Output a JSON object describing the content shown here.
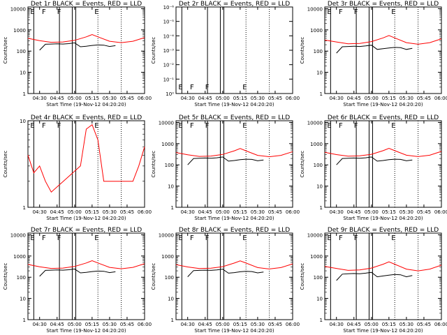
{
  "colors": {
    "events": "#000000",
    "lld": "#ff0000",
    "background": "#ffffff"
  },
  "chart_data": [
    {
      "type": "line",
      "scale": "log",
      "title": "Det 1r BLACK = Events, RED = LLD",
      "xlabel": "Start Time (19-Nov-12 04:20:20)",
      "ylabel": "Counts/sec",
      "x_ticks": [
        "04:30",
        "04:45",
        "05:00",
        "05:15",
        "05:30",
        "05:45",
        "06:00"
      ],
      "y_ticks": [
        "1",
        "10",
        "100",
        "1000",
        "10000"
      ],
      "ylim": [
        1,
        12000
      ],
      "markers": [
        "E",
        "F",
        "F",
        "E"
      ],
      "series": [
        {
          "name": "Events",
          "x": [
            "04:30",
            "04:35",
            "04:40",
            "04:45",
            "04:50",
            "04:55",
            "05:00",
            "05:05",
            "05:10",
            "05:15",
            "05:20",
            "05:25",
            "05:30",
            "05:35"
          ],
          "y": [
            110,
            210,
            215,
            220,
            215,
            225,
            245,
            160,
            170,
            185,
            195,
            190,
            165,
            180
          ]
        },
        {
          "name": "LLD",
          "x": [
            "04:20",
            "04:30",
            "04:40",
            "04:50",
            "05:00",
            "05:10",
            "05:15",
            "05:20",
            "05:30",
            "05:40",
            "05:50",
            "06:00"
          ],
          "y": [
            400,
            310,
            260,
            270,
            320,
            470,
            600,
            470,
            290,
            250,
            290,
            430
          ]
        }
      ]
    },
    {
      "type": "line",
      "scale": "log",
      "title": "Det 2r BLACK = Events, RED = LLD",
      "xlabel": "Start Time (19-Nov-12 04:20:20)",
      "ylabel": "Counts/sec",
      "x_ticks": [
        "04:30",
        "04:45",
        "05:00",
        "05:15",
        "05:30",
        "05:45",
        "06:00"
      ],
      "y_ticks": [
        "10⁰",
        "10⁻¹",
        "10⁻²",
        "10⁻³",
        "10⁻⁴",
        "10⁻⁵",
        "10⁻⁶"
      ],
      "ylim": [
        1,
        1000000
      ],
      "markers": [
        "E",
        "F",
        "F",
        "E"
      ],
      "series": []
    },
    {
      "type": "line",
      "scale": "log",
      "title": "Det 3r BLACK = Events, RED = LLD",
      "xlabel": "Start Time (19-Nov-12 04:20:20)",
      "ylabel": "Counts/sec",
      "x_ticks": [
        "04:30",
        "04:45",
        "05:00",
        "05:15",
        "05:30",
        "05:45",
        "06:00"
      ],
      "y_ticks": [
        "1",
        "10",
        "100",
        "1000",
        "10000"
      ],
      "ylim": [
        1,
        12000
      ],
      "markers": [
        "E",
        "F",
        "F",
        "E"
      ],
      "series": [
        {
          "name": "Events",
          "x": [
            "04:30",
            "04:35",
            "04:40",
            "04:45",
            "04:50",
            "04:55",
            "05:00",
            "05:05",
            "05:10",
            "05:15",
            "05:20",
            "05:25",
            "05:30",
            "05:35"
          ],
          "y": [
            80,
            160,
            165,
            170,
            165,
            175,
            190,
            120,
            130,
            140,
            150,
            145,
            120,
            135
          ]
        },
        {
          "name": "LLD",
          "x": [
            "04:20",
            "04:30",
            "04:40",
            "04:50",
            "05:00",
            "05:10",
            "05:15",
            "05:20",
            "05:30",
            "05:40",
            "05:50",
            "06:00"
          ],
          "y": [
            330,
            270,
            220,
            230,
            280,
            420,
            540,
            420,
            250,
            210,
            250,
            380
          ]
        }
      ]
    },
    {
      "type": "line",
      "scale": "log",
      "title": "Det 4r BLACK = Events, RED = LLD",
      "xlabel": "Start Time (19-Nov-12 04:20:20)",
      "ylabel": "Counts/sec",
      "x_ticks": [
        "04:30",
        "04:45",
        "05:00",
        "05:15",
        "05:30",
        "05:45",
        "06:00"
      ],
      "y_ticks": [
        "1",
        "10"
      ],
      "ylim": [
        1,
        10
      ],
      "markers": [
        "E",
        "F",
        "F",
        "E"
      ],
      "series": [
        {
          "name": "LLD",
          "x": [
            "04:20",
            "04:25",
            "04:30",
            "04:35",
            "04:40",
            "05:05",
            "05:10",
            "05:15",
            "05:20",
            "05:25",
            "05:50",
            "05:55",
            "06:00"
          ],
          "y": [
            4,
            2.5,
            3,
            2,
            1.5,
            3,
            8,
            9,
            6,
            2,
            2,
            3,
            5
          ]
        }
      ]
    },
    {
      "type": "line",
      "scale": "log",
      "title": "Det 5r BLACK = Events, RED = LLD",
      "xlabel": "Start Time (19-Nov-12 04:20:20)",
      "ylabel": "Counts/sec",
      "x_ticks": [
        "04:30",
        "04:45",
        "05:00",
        "05:15",
        "05:30",
        "05:45",
        "06:00"
      ],
      "y_ticks": [
        "1",
        "10",
        "100",
        "1000",
        "10000"
      ],
      "ylim": [
        1,
        12000
      ],
      "markers": [
        "E",
        "F",
        "F",
        "E"
      ],
      "series": [
        {
          "name": "Events",
          "x": [
            "04:30",
            "04:35",
            "04:40",
            "04:45",
            "04:50",
            "04:55",
            "05:00",
            "05:05",
            "05:10",
            "05:15",
            "05:20",
            "05:25",
            "05:30",
            "05:35"
          ],
          "y": [
            100,
            200,
            205,
            210,
            205,
            215,
            235,
            150,
            160,
            175,
            185,
            180,
            155,
            170
          ]
        },
        {
          "name": "LLD",
          "x": [
            "04:20",
            "04:30",
            "04:40",
            "04:50",
            "05:00",
            "05:10",
            "05:15",
            "05:20",
            "05:30",
            "05:40",
            "05:50",
            "06:00"
          ],
          "y": [
            380,
            300,
            250,
            260,
            310,
            460,
            590,
            460,
            280,
            240,
            280,
            420
          ]
        }
      ]
    },
    {
      "type": "line",
      "scale": "log",
      "title": "Det 6r BLACK = Events, RED = LLD",
      "xlabel": "Start Time (19-Nov-12 04:20:20)",
      "ylabel": "Counts/sec",
      "x_ticks": [
        "04:30",
        "04:45",
        "05:00",
        "05:15",
        "05:30",
        "05:45",
        "06:00"
      ],
      "y_ticks": [
        "1",
        "10",
        "100",
        "1000",
        "10000"
      ],
      "ylim": [
        1,
        12000
      ],
      "markers": [
        "E",
        "F",
        "F",
        "E"
      ],
      "series": [
        {
          "name": "Events",
          "x": [
            "04:30",
            "04:35",
            "04:40",
            "04:45",
            "04:50",
            "04:55",
            "05:00",
            "05:05",
            "05:10",
            "05:15",
            "05:20",
            "05:25",
            "05:30",
            "05:35"
          ],
          "y": [
            100,
            200,
            205,
            210,
            205,
            215,
            235,
            150,
            160,
            175,
            185,
            180,
            155,
            170
          ]
        },
        {
          "name": "LLD",
          "x": [
            "04:20",
            "04:30",
            "04:40",
            "04:50",
            "05:00",
            "05:10",
            "05:15",
            "05:20",
            "05:30",
            "05:40",
            "05:50",
            "06:00"
          ],
          "y": [
            390,
            305,
            255,
            265,
            315,
            465,
            600,
            465,
            285,
            245,
            285,
            430
          ]
        }
      ]
    },
    {
      "type": "line",
      "scale": "log",
      "title": "Det 7r BLACK = Events, RED = LLD",
      "xlabel": "Start Time (19-Nov-12 04:20:20)",
      "ylabel": "Counts/sec",
      "x_ticks": [
        "04:30",
        "04:45",
        "05:00",
        "05:15",
        "05:30",
        "05:45",
        "06:00"
      ],
      "y_ticks": [
        "1",
        "10",
        "100",
        "1000",
        "10000"
      ],
      "ylim": [
        1,
        12000
      ],
      "markers": [
        "E",
        "F",
        "F",
        "E"
      ],
      "series": [
        {
          "name": "Events",
          "x": [
            "04:30",
            "04:35",
            "04:40",
            "04:45",
            "04:50",
            "04:55",
            "05:00",
            "05:05",
            "05:10",
            "05:15",
            "05:20",
            "05:25",
            "05:30",
            "05:35"
          ],
          "y": [
            110,
            210,
            215,
            220,
            215,
            225,
            245,
            160,
            170,
            185,
            195,
            190,
            165,
            180
          ]
        },
        {
          "name": "LLD",
          "x": [
            "04:20",
            "04:30",
            "04:40",
            "04:50",
            "05:00",
            "05:10",
            "05:15",
            "05:20",
            "05:30",
            "05:40",
            "05:50",
            "06:00"
          ],
          "y": [
            400,
            310,
            260,
            270,
            320,
            470,
            600,
            470,
            290,
            250,
            290,
            430
          ]
        }
      ]
    },
    {
      "type": "line",
      "scale": "log",
      "title": "Det 8r BLACK = Events, RED = LLD",
      "xlabel": "Start Time (19-Nov-12 04:20:20)",
      "ylabel": "Counts/sec",
      "x_ticks": [
        "04:30",
        "04:45",
        "05:00",
        "05:15",
        "05:30",
        "05:45",
        "06:00"
      ],
      "y_ticks": [
        "1",
        "10",
        "100",
        "1000",
        "10000"
      ],
      "ylim": [
        1,
        12000
      ],
      "markers": [
        "E",
        "F",
        "F",
        "E"
      ],
      "series": [
        {
          "name": "Events",
          "x": [
            "04:30",
            "04:35",
            "04:40",
            "04:45",
            "04:50",
            "04:55",
            "05:00",
            "05:05",
            "05:10",
            "05:15",
            "05:20",
            "05:25",
            "05:30",
            "05:35"
          ],
          "y": [
            105,
            205,
            210,
            215,
            210,
            220,
            240,
            155,
            165,
            180,
            190,
            185,
            160,
            175
          ]
        },
        {
          "name": "LLD",
          "x": [
            "04:20",
            "04:30",
            "04:40",
            "04:50",
            "05:00",
            "05:10",
            "05:15",
            "05:20",
            "05:30",
            "05:40",
            "05:50",
            "06:00"
          ],
          "y": [
            390,
            305,
            255,
            265,
            315,
            465,
            590,
            465,
            285,
            245,
            285,
            425
          ]
        }
      ]
    },
    {
      "type": "line",
      "scale": "log",
      "title": "Det 9r BLACK = Events, RED = LLD",
      "xlabel": "Start Time (19-Nov-12 04:20:20)",
      "ylabel": "Counts/sec",
      "x_ticks": [
        "04:30",
        "04:45",
        "05:00",
        "05:15",
        "05:30",
        "05:45",
        "06:00"
      ],
      "y_ticks": [
        "1",
        "10",
        "100",
        "1000",
        "10000"
      ],
      "ylim": [
        1,
        12000
      ],
      "markers": [
        "E",
        "F",
        "F",
        "E"
      ],
      "series": [
        {
          "name": "Events",
          "x": [
            "04:30",
            "04:35",
            "04:40",
            "04:45",
            "04:50",
            "04:55",
            "05:00",
            "05:05",
            "05:10",
            "05:15",
            "05:20",
            "05:25",
            "05:30",
            "05:35"
          ],
          "y": [
            70,
            140,
            145,
            150,
            145,
            155,
            170,
            105,
            115,
            125,
            135,
            130,
            105,
            120
          ]
        },
        {
          "name": "LLD",
          "x": [
            "04:20",
            "04:30",
            "04:40",
            "04:50",
            "05:00",
            "05:10",
            "05:15",
            "05:20",
            "05:30",
            "05:40",
            "05:50",
            "06:00"
          ],
          "y": [
            320,
            260,
            210,
            220,
            270,
            410,
            530,
            410,
            240,
            200,
            240,
            370
          ]
        }
      ]
    }
  ]
}
